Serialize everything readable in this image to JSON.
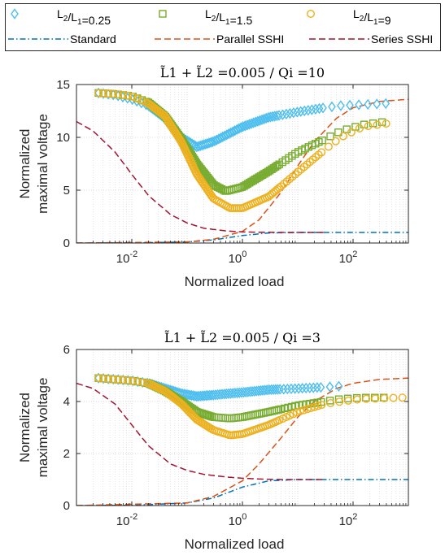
{
  "legend": {
    "items": [
      {
        "label": "L2/L1=0.25",
        "marker": "diamond",
        "color": "#4DBEEE",
        "style": "marker"
      },
      {
        "label": "L2/L1=1.5",
        "marker": "square",
        "color": "#77AC30",
        "style": "marker"
      },
      {
        "label": "L2/L1=9",
        "marker": "circle",
        "color": "#EDB120",
        "style": "marker"
      },
      {
        "label": "Standard",
        "color": "#0072BD",
        "style": "dashdot"
      },
      {
        "label": "Parallel SSHI",
        "color": "#D95319",
        "style": "dashed"
      },
      {
        "label": "Series SSHI",
        "color": "#A2142F",
        "style": "dashed"
      }
    ]
  },
  "chart_data": [
    {
      "type": "scatter",
      "title": "L̃1 + L̃2 =0.005 / Qi =10",
      "xlabel": "Normalized load",
      "ylabel": [
        "Normalized",
        "maximal voltage"
      ],
      "xscale": "log",
      "xlim": [
        0.001,
        1000
      ],
      "ylim": [
        0,
        15
      ],
      "xticks": [
        0.01,
        1,
        100
      ],
      "xtick_labels": [
        "10-2",
        "100",
        "102"
      ],
      "yticks": [
        0,
        5,
        10,
        15
      ],
      "grid": true,
      "series": [
        {
          "name": "L2/L1=0.25",
          "kind": "markers",
          "marker": "diamond",
          "color": "#4DBEEE",
          "x": [
            0.0025,
            0.005,
            0.01,
            0.02,
            0.04,
            0.08,
            0.15,
            0.3,
            1,
            3,
            10,
            30,
            60,
            150,
            400
          ],
          "y": [
            14.2,
            14.0,
            13.6,
            13.0,
            11.8,
            10.0,
            9.1,
            9.6,
            11.0,
            11.9,
            12.4,
            12.8,
            13.0,
            13.1,
            13.2
          ]
        },
        {
          "name": "L2/L1=1.5",
          "kind": "markers",
          "marker": "square",
          "color": "#77AC30",
          "x": [
            0.0025,
            0.005,
            0.01,
            0.02,
            0.04,
            0.08,
            0.15,
            0.3,
            0.5,
            1,
            3,
            10,
            30,
            60,
            150,
            400
          ],
          "y": [
            14.2,
            14.1,
            13.9,
            13.3,
            12.0,
            9.8,
            7.5,
            5.5,
            4.9,
            5.3,
            6.8,
            8.6,
            9.8,
            10.6,
            11.2,
            11.5
          ]
        },
        {
          "name": "L2/L1=9",
          "kind": "markers",
          "marker": "circle",
          "color": "#EDB120",
          "x": [
            0.0025,
            0.005,
            0.01,
            0.02,
            0.04,
            0.08,
            0.15,
            0.3,
            0.6,
            1,
            3,
            10,
            30,
            60,
            150,
            400
          ],
          "y": [
            14.2,
            14.1,
            13.9,
            13.2,
            12.0,
            9.5,
            6.5,
            4.2,
            3.3,
            3.3,
            4.4,
            6.7,
            8.8,
            10.0,
            11.0,
            11.3
          ]
        },
        {
          "name": "Standard",
          "kind": "line",
          "dash": "dashdot",
          "color": "#0072BD",
          "x": [
            0.001,
            0.01,
            0.1,
            0.3,
            1,
            3,
            10,
            30,
            100,
            1000
          ],
          "y": [
            0.0,
            0.01,
            0.1,
            0.29,
            0.71,
            0.95,
            1.0,
            1.0,
            1.0,
            1.0
          ]
        },
        {
          "name": "Parallel SSHI",
          "kind": "line",
          "dash": "dashed",
          "color": "#D95319",
          "x": [
            0.001,
            0.1,
            0.3,
            1,
            2,
            5,
            10,
            20,
            50,
            100,
            300,
            1000
          ],
          "y": [
            0.0,
            0.1,
            0.35,
            1.1,
            2.2,
            4.8,
            7.3,
            9.6,
            11.8,
            12.8,
            13.4,
            13.6
          ]
        },
        {
          "name": "Series SSHI",
          "kind": "line",
          "dash": "dashed",
          "color": "#A2142F",
          "x": [
            0.001,
            0.002,
            0.005,
            0.01,
            0.02,
            0.05,
            0.1,
            0.2,
            0.5,
            1,
            2,
            5,
            10,
            30
          ],
          "y": [
            11.5,
            10.6,
            8.6,
            6.5,
            4.5,
            2.7,
            1.9,
            1.4,
            1.15,
            1.05,
            1.02,
            1.0,
            1.0,
            1.0
          ]
        }
      ]
    },
    {
      "type": "scatter",
      "title": "L̃1 + L̃2 =0.005 / Qi =3",
      "xlabel": "Normalized load",
      "ylabel": [
        "Normalized",
        "maximal voltage"
      ],
      "xscale": "log",
      "xlim": [
        0.001,
        1000
      ],
      "ylim": [
        0,
        6
      ],
      "xticks": [
        0.01,
        1,
        100
      ],
      "xtick_labels": [
        "10-2",
        "100",
        "102"
      ],
      "yticks": [
        0,
        2,
        4,
        6
      ],
      "grid": true,
      "series": [
        {
          "name": "L2/L1=0.25",
          "kind": "markers",
          "marker": "diamond",
          "color": "#4DBEEE",
          "x": [
            0.0025,
            0.005,
            0.01,
            0.02,
            0.04,
            0.08,
            0.15,
            0.3,
            1,
            3,
            10,
            30,
            70
          ],
          "y": [
            4.9,
            4.85,
            4.8,
            4.7,
            4.5,
            4.3,
            4.2,
            4.25,
            4.35,
            4.45,
            4.5,
            4.55,
            4.6
          ]
        },
        {
          "name": "L2/L1=1.5",
          "kind": "markers",
          "marker": "square",
          "color": "#77AC30",
          "x": [
            0.0025,
            0.005,
            0.01,
            0.02,
            0.04,
            0.08,
            0.15,
            0.3,
            0.6,
            1,
            3,
            10,
            30,
            60,
            150,
            400
          ],
          "y": [
            4.9,
            4.85,
            4.8,
            4.7,
            4.4,
            4.0,
            3.6,
            3.4,
            3.35,
            3.4,
            3.6,
            3.85,
            4.0,
            4.1,
            4.15,
            4.15
          ]
        },
        {
          "name": "L2/L1=9",
          "kind": "markers",
          "marker": "circle",
          "color": "#EDB120",
          "x": [
            0.0025,
            0.005,
            0.01,
            0.02,
            0.04,
            0.08,
            0.15,
            0.3,
            0.6,
            1,
            3,
            10,
            30,
            60,
            150,
            800
          ],
          "y": [
            4.9,
            4.85,
            4.8,
            4.7,
            4.4,
            3.9,
            3.3,
            2.9,
            2.7,
            2.75,
            3.1,
            3.6,
            3.9,
            4.0,
            4.1,
            4.15
          ]
        },
        {
          "name": "Standard",
          "kind": "line",
          "dash": "dashdot",
          "color": "#0072BD",
          "x": [
            0.001,
            0.01,
            0.1,
            0.3,
            1,
            3,
            10,
            30,
            100,
            1000
          ],
          "y": [
            0.0,
            0.01,
            0.1,
            0.29,
            0.71,
            0.95,
            1.0,
            1.0,
            1.0,
            1.0
          ]
        },
        {
          "name": "Parallel SSHI",
          "kind": "line",
          "dash": "dashed",
          "color": "#D95319",
          "x": [
            0.001,
            0.1,
            0.3,
            1,
            2,
            5,
            10,
            20,
            50,
            100,
            300,
            1000
          ],
          "y": [
            0.0,
            0.1,
            0.35,
            0.95,
            1.6,
            2.6,
            3.4,
            4.0,
            4.5,
            4.7,
            4.85,
            4.9
          ]
        },
        {
          "name": "Series SSHI",
          "kind": "line",
          "dash": "dashed",
          "color": "#A2142F",
          "x": [
            0.001,
            0.002,
            0.005,
            0.01,
            0.02,
            0.05,
            0.1,
            0.2,
            0.5,
            1,
            2,
            5,
            10,
            30
          ],
          "y": [
            4.7,
            4.5,
            3.9,
            3.1,
            2.3,
            1.6,
            1.35,
            1.2,
            1.1,
            1.05,
            1.02,
            1.0,
            1.0,
            1.0
          ]
        }
      ]
    }
  ]
}
